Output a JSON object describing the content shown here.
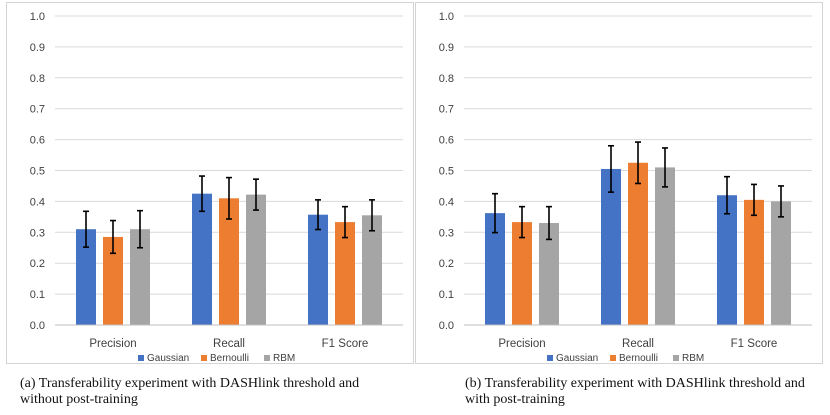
{
  "chart_data": [
    {
      "type": "bar",
      "panel_label": "(a)",
      "caption": "Transferability experiment with DASHlink threshold and without post-training",
      "categories": [
        "Precision",
        "Recall",
        "F1 Score"
      ],
      "series": [
        {
          "name": "Gaussian",
          "color": "#4472c4",
          "values": [
            0.31,
            0.425,
            0.357
          ],
          "errors": [
            0.058,
            0.057,
            0.048
          ]
        },
        {
          "name": "Bernoulli",
          "color": "#ed7d31",
          "values": [
            0.285,
            0.41,
            0.333
          ],
          "errors": [
            0.053,
            0.067,
            0.05
          ]
        },
        {
          "name": "RBM",
          "color": "#a5a5a5",
          "values": [
            0.31,
            0.422,
            0.355
          ],
          "errors": [
            0.06,
            0.05,
            0.05
          ]
        }
      ],
      "ylim": [
        0,
        1.0
      ],
      "yticks": [
        "0.0",
        "0.1",
        "0.2",
        "0.3",
        "0.4",
        "0.5",
        "0.6",
        "0.7",
        "0.8",
        "0.9",
        "1.0"
      ],
      "grid": true,
      "legend": "bottom-center",
      "title": "",
      "xlabel": "",
      "ylabel": ""
    },
    {
      "type": "bar",
      "panel_label": "(b)",
      "caption": "Transferability experiment with DASHlink threshold and with post-training",
      "categories": [
        "Precision",
        "Recall",
        "F1 Score"
      ],
      "series": [
        {
          "name": "Gaussian",
          "color": "#4472c4",
          "values": [
            0.362,
            0.505,
            0.42
          ],
          "errors": [
            0.063,
            0.075,
            0.06
          ]
        },
        {
          "name": "Bernoulli",
          "color": "#ed7d31",
          "values": [
            0.333,
            0.525,
            0.405
          ],
          "errors": [
            0.05,
            0.067,
            0.05
          ]
        },
        {
          "name": "RBM",
          "color": "#a5a5a5",
          "values": [
            0.33,
            0.51,
            0.4
          ],
          "errors": [
            0.053,
            0.063,
            0.05
          ]
        }
      ],
      "ylim": [
        0,
        1.0
      ],
      "yticks": [
        "0.0",
        "0.1",
        "0.2",
        "0.3",
        "0.4",
        "0.5",
        "0.6",
        "0.7",
        "0.8",
        "0.9",
        "1.0"
      ],
      "grid": true,
      "legend": "bottom-center",
      "title": "",
      "xlabel": "",
      "ylabel": ""
    }
  ]
}
